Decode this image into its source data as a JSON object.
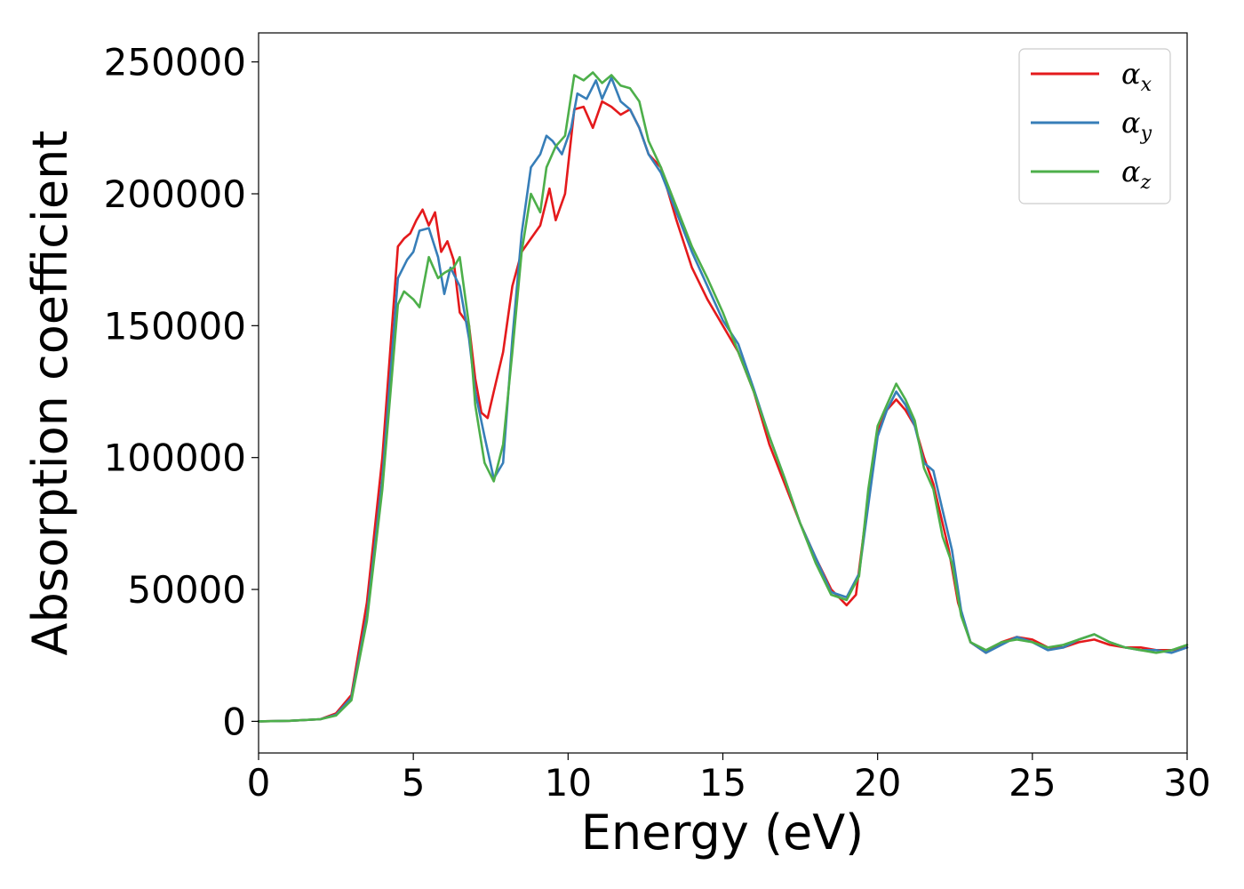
{
  "chart_data": {
    "type": "line",
    "title": "",
    "xlabel": "Energy (eV)",
    "ylabel": "Absorption coefficient",
    "xlim": [
      0,
      30
    ],
    "ylim": [
      -12000,
      261000
    ],
    "xticks": [
      0,
      5,
      10,
      15,
      20,
      25,
      30
    ],
    "yticks": [
      0,
      50000,
      100000,
      150000,
      200000,
      250000
    ],
    "grid": false,
    "legend_position": "top-right",
    "series": [
      {
        "name": "α",
        "subscript": "x",
        "color": "#e41a1c",
        "points": [
          [
            0,
            0
          ],
          [
            1,
            200
          ],
          [
            2,
            800
          ],
          [
            2.5,
            3000
          ],
          [
            3,
            10000
          ],
          [
            3.5,
            45000
          ],
          [
            4,
            100000
          ],
          [
            4.5,
            180000
          ],
          [
            4.7,
            183000
          ],
          [
            4.9,
            185000
          ],
          [
            5.1,
            190000
          ],
          [
            5.3,
            194000
          ],
          [
            5.5,
            188000
          ],
          [
            5.7,
            193000
          ],
          [
            5.9,
            178000
          ],
          [
            6.1,
            182000
          ],
          [
            6.3,
            175000
          ],
          [
            6.5,
            155000
          ],
          [
            6.8,
            150000
          ],
          [
            7.0,
            130000
          ],
          [
            7.2,
            117000
          ],
          [
            7.4,
            115000
          ],
          [
            7.6,
            125000
          ],
          [
            7.9,
            140000
          ],
          [
            8.2,
            165000
          ],
          [
            8.5,
            178000
          ],
          [
            8.8,
            183000
          ],
          [
            9.1,
            188000
          ],
          [
            9.4,
            202000
          ],
          [
            9.6,
            190000
          ],
          [
            9.9,
            200000
          ],
          [
            10.2,
            232000
          ],
          [
            10.5,
            233000
          ],
          [
            10.8,
            225000
          ],
          [
            11.1,
            235000
          ],
          [
            11.4,
            233000
          ],
          [
            11.7,
            230000
          ],
          [
            12.0,
            232000
          ],
          [
            12.3,
            225000
          ],
          [
            12.6,
            215000
          ],
          [
            13.0,
            210000
          ],
          [
            13.5,
            190000
          ],
          [
            14.0,
            172000
          ],
          [
            14.5,
            160000
          ],
          [
            15.0,
            150000
          ],
          [
            15.5,
            140000
          ],
          [
            16.0,
            125000
          ],
          [
            16.5,
            105000
          ],
          [
            17.0,
            90000
          ],
          [
            17.5,
            75000
          ],
          [
            18.0,
            62000
          ],
          [
            18.5,
            50000
          ],
          [
            19.0,
            44000
          ],
          [
            19.3,
            48000
          ],
          [
            19.7,
            85000
          ],
          [
            20.0,
            110000
          ],
          [
            20.3,
            118000
          ],
          [
            20.6,
            122000
          ],
          [
            20.9,
            118000
          ],
          [
            21.2,
            112000
          ],
          [
            21.5,
            100000
          ],
          [
            21.8,
            90000
          ],
          [
            22.0,
            80000
          ],
          [
            22.3,
            65000
          ],
          [
            22.6,
            45000
          ],
          [
            23.0,
            30000
          ],
          [
            23.5,
            26000
          ],
          [
            24.0,
            30000
          ],
          [
            24.5,
            32000
          ],
          [
            25.0,
            31000
          ],
          [
            25.5,
            28000
          ],
          [
            26.0,
            28000
          ],
          [
            26.5,
            30000
          ],
          [
            27.0,
            31000
          ],
          [
            27.5,
            29000
          ],
          [
            28.0,
            28000
          ],
          [
            28.5,
            28000
          ],
          [
            29.0,
            27000
          ],
          [
            29.5,
            27000
          ],
          [
            30.0,
            28000
          ]
        ]
      },
      {
        "name": "α",
        "subscript": "y",
        "color": "#377eb8",
        "points": [
          [
            0,
            0
          ],
          [
            1,
            200
          ],
          [
            2,
            800
          ],
          [
            2.5,
            2500
          ],
          [
            3,
            9000
          ],
          [
            3.5,
            40000
          ],
          [
            4,
            92000
          ],
          [
            4.5,
            168000
          ],
          [
            4.8,
            175000
          ],
          [
            5.0,
            178000
          ],
          [
            5.2,
            186000
          ],
          [
            5.5,
            187000
          ],
          [
            5.8,
            176000
          ],
          [
            6.0,
            162000
          ],
          [
            6.2,
            172000
          ],
          [
            6.5,
            165000
          ],
          [
            6.8,
            145000
          ],
          [
            7.0,
            125000
          ],
          [
            7.3,
            108000
          ],
          [
            7.6,
            92000
          ],
          [
            7.9,
            98000
          ],
          [
            8.2,
            145000
          ],
          [
            8.5,
            185000
          ],
          [
            8.8,
            210000
          ],
          [
            9.1,
            215000
          ],
          [
            9.3,
            222000
          ],
          [
            9.5,
            220000
          ],
          [
            9.8,
            215000
          ],
          [
            10.1,
            225000
          ],
          [
            10.3,
            238000
          ],
          [
            10.6,
            236000
          ],
          [
            10.9,
            243000
          ],
          [
            11.1,
            236000
          ],
          [
            11.4,
            244000
          ],
          [
            11.7,
            235000
          ],
          [
            12.0,
            232000
          ],
          [
            12.3,
            225000
          ],
          [
            12.6,
            215000
          ],
          [
            13.0,
            208000
          ],
          [
            13.5,
            193000
          ],
          [
            14.0,
            178000
          ],
          [
            14.5,
            165000
          ],
          [
            15.0,
            152000
          ],
          [
            15.5,
            143000
          ],
          [
            16.0,
            126000
          ],
          [
            16.5,
            108000
          ],
          [
            17.0,
            92000
          ],
          [
            17.5,
            75000
          ],
          [
            18.0,
            62000
          ],
          [
            18.5,
            49000
          ],
          [
            19.0,
            47000
          ],
          [
            19.4,
            56000
          ],
          [
            19.7,
            82000
          ],
          [
            20.0,
            108000
          ],
          [
            20.3,
            118000
          ],
          [
            20.6,
            125000
          ],
          [
            20.9,
            120000
          ],
          [
            21.2,
            112000
          ],
          [
            21.5,
            98000
          ],
          [
            21.8,
            95000
          ],
          [
            22.1,
            80000
          ],
          [
            22.4,
            65000
          ],
          [
            22.7,
            42000
          ],
          [
            23.0,
            30000
          ],
          [
            23.5,
            26000
          ],
          [
            24.0,
            29000
          ],
          [
            24.5,
            32000
          ],
          [
            25.0,
            30000
          ],
          [
            25.5,
            27000
          ],
          [
            26.0,
            28000
          ],
          [
            26.5,
            31000
          ],
          [
            27.0,
            33000
          ],
          [
            27.5,
            30000
          ],
          [
            28.0,
            28000
          ],
          [
            28.5,
            27000
          ],
          [
            29.0,
            27000
          ],
          [
            29.5,
            26000
          ],
          [
            30.0,
            28000
          ]
        ]
      },
      {
        "name": "α",
        "subscript": "z",
        "color": "#4daf4a",
        "points": [
          [
            0,
            0
          ],
          [
            1,
            200
          ],
          [
            2,
            800
          ],
          [
            2.5,
            2200
          ],
          [
            3,
            8000
          ],
          [
            3.5,
            38000
          ],
          [
            4,
            88000
          ],
          [
            4.5,
            158000
          ],
          [
            4.7,
            163000
          ],
          [
            5.0,
            160000
          ],
          [
            5.2,
            157000
          ],
          [
            5.5,
            176000
          ],
          [
            5.8,
            168000
          ],
          [
            6.0,
            170000
          ],
          [
            6.3,
            172000
          ],
          [
            6.5,
            176000
          ],
          [
            6.8,
            150000
          ],
          [
            7.0,
            120000
          ],
          [
            7.3,
            98000
          ],
          [
            7.6,
            91000
          ],
          [
            7.9,
            105000
          ],
          [
            8.2,
            140000
          ],
          [
            8.5,
            178000
          ],
          [
            8.8,
            200000
          ],
          [
            9.1,
            193000
          ],
          [
            9.3,
            210000
          ],
          [
            9.6,
            218000
          ],
          [
            9.9,
            222000
          ],
          [
            10.2,
            245000
          ],
          [
            10.5,
            243000
          ],
          [
            10.8,
            246000
          ],
          [
            11.1,
            242000
          ],
          [
            11.4,
            245000
          ],
          [
            11.7,
            241000
          ],
          [
            12.0,
            240000
          ],
          [
            12.3,
            235000
          ],
          [
            12.6,
            220000
          ],
          [
            13.0,
            210000
          ],
          [
            13.5,
            195000
          ],
          [
            14.0,
            180000
          ],
          [
            14.5,
            168000
          ],
          [
            15.0,
            155000
          ],
          [
            15.5,
            140000
          ],
          [
            16.0,
            125000
          ],
          [
            16.5,
            108000
          ],
          [
            17.0,
            92000
          ],
          [
            17.5,
            75000
          ],
          [
            18.0,
            60000
          ],
          [
            18.5,
            48000
          ],
          [
            19.0,
            46000
          ],
          [
            19.4,
            55000
          ],
          [
            19.7,
            88000
          ],
          [
            20.0,
            112000
          ],
          [
            20.3,
            120000
          ],
          [
            20.6,
            128000
          ],
          [
            20.9,
            122000
          ],
          [
            21.2,
            114000
          ],
          [
            21.5,
            96000
          ],
          [
            21.8,
            88000
          ],
          [
            22.1,
            70000
          ],
          [
            22.4,
            60000
          ],
          [
            22.7,
            40000
          ],
          [
            23.0,
            30000
          ],
          [
            23.5,
            27000
          ],
          [
            24.0,
            30000
          ],
          [
            24.5,
            31000
          ],
          [
            25.0,
            30000
          ],
          [
            25.5,
            28000
          ],
          [
            26.0,
            29000
          ],
          [
            26.5,
            31000
          ],
          [
            27.0,
            33000
          ],
          [
            27.5,
            30000
          ],
          [
            28.0,
            28000
          ],
          [
            28.5,
            27000
          ],
          [
            29.0,
            26000
          ],
          [
            29.5,
            27000
          ],
          [
            30.0,
            29000
          ]
        ]
      }
    ]
  }
}
